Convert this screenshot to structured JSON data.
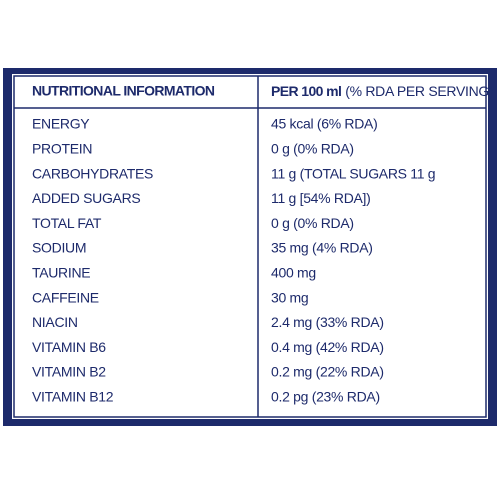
{
  "header": {
    "nutrient_column": "NUTRITIONAL INFORMATION",
    "amount_column": "PER 100 ml",
    "amount_note": "(% RDA PER SERVING)"
  },
  "table": {
    "rows": [
      [
        "ENERGY",
        "45 kcal (6% RDA)"
      ],
      [
        "PROTEIN",
        "0 g (0% RDA)"
      ],
      [
        "CARBOHYDRATES",
        "11 g (TOTAL SUGARS 11 g"
      ],
      [
        "ADDED SUGARS",
        "11 g [54% RDA])"
      ],
      [
        "TOTAL FAT",
        "0 g (0% RDA)"
      ],
      [
        "SODIUM",
        "35 mg (4% RDA)"
      ],
      [
        "TAURINE",
        "400 mg"
      ],
      [
        "CAFFEINE",
        "30 mg"
      ],
      [
        "NIACIN",
        "2.4 mg (33% RDA)"
      ],
      [
        "VITAMIN B6",
        "0.4 mg (42% RDA)"
      ],
      [
        "VITAMIN B2",
        "0.2 mg (22% RDA)"
      ],
      [
        "VITAMIN B12",
        "0.2 pg (23% RDA)"
      ]
    ]
  }
}
